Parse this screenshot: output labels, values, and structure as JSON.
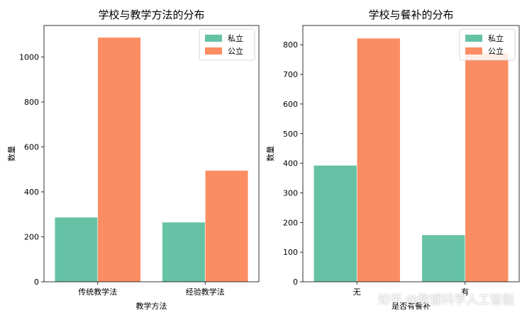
{
  "colors": {
    "private": "#66c2a5",
    "public": "#fc8d62"
  },
  "watermark": "知乎 @数据科学人工智能",
  "chart_data": [
    {
      "type": "bar",
      "title": "学校与教学方法的分布",
      "xlabel": "教学方法",
      "ylabel": "数量",
      "categories": [
        "传统教学法",
        "经验教学法"
      ],
      "ylim": [
        0,
        1140
      ],
      "yticks": [
        0,
        200,
        400,
        600,
        800,
        1000
      ],
      "legend_position": "upper right",
      "grid": false,
      "series": [
        {
          "name": "私立",
          "values": [
            287,
            265
          ]
        },
        {
          "name": "公立",
          "values": [
            1087,
            495
          ]
        }
      ]
    },
    {
      "type": "bar",
      "title": "学校与餐补的分布",
      "xlabel": "是否有餐补",
      "ylabel": "数量",
      "categories": [
        "无",
        "有"
      ],
      "ylim": [
        0,
        865
      ],
      "yticks": [
        0,
        100,
        200,
        300,
        400,
        500,
        600,
        700,
        800
      ],
      "legend_position": "upper right",
      "grid": false,
      "series": [
        {
          "name": "私立",
          "values": [
            393,
            158
          ]
        },
        {
          "name": "公立",
          "values": [
            822,
            773
          ]
        }
      ]
    }
  ]
}
